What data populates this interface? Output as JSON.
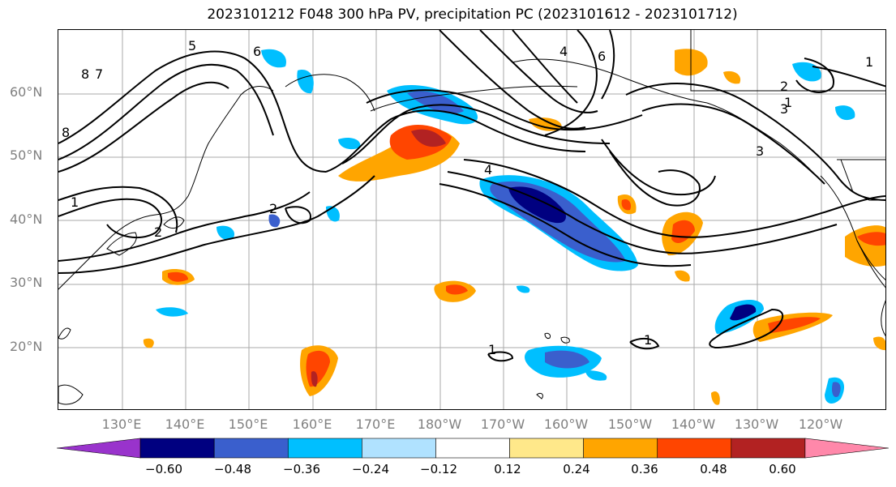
{
  "title": "2023101212 F048 300 hPa PV, precipitation PC (2023101612 - 2023101712)",
  "lat_labels": [
    "60°N",
    "50°N",
    "40°N",
    "30°N",
    "20°N"
  ],
  "lon_labels": [
    "130°E",
    "140°E",
    "150°E",
    "160°E",
    "170°E",
    "180°W",
    "170°W",
    "160°W",
    "150°W",
    "140°W",
    "130°W",
    "120°W"
  ],
  "colorbar": {
    "ticks": [
      "−0.60",
      "−0.48",
      "−0.36",
      "−0.24",
      "−0.12",
      "0.12",
      "0.24",
      "0.36",
      "0.48",
      "0.60"
    ],
    "colors": [
      "#9933cc",
      "#000080",
      "#3a5fcd",
      "#00bfff",
      "#b0e2ff",
      "#ffffff",
      "#ffe88a",
      "#ffa500",
      "#ff4500",
      "#b22222",
      "#ff88aa"
    ]
  },
  "contour_labels": [
    "1",
    "1",
    "2",
    "2",
    "3",
    "4",
    "5",
    "6",
    "7",
    "8",
    "8",
    "1",
    "1",
    "1",
    "2",
    "3",
    "4",
    "6"
  ],
  "colors": {
    "strong_negative": "#000080",
    "negative": "#3a5fcd",
    "weak_negative": "#00bfff",
    "faint_negative": "#b0e2ff",
    "positive": "#ffa500",
    "strong_positive": "#ff4500",
    "faint_positive": "#ffe88a",
    "grid": "#aaaaaa",
    "coast": "#000000"
  }
}
